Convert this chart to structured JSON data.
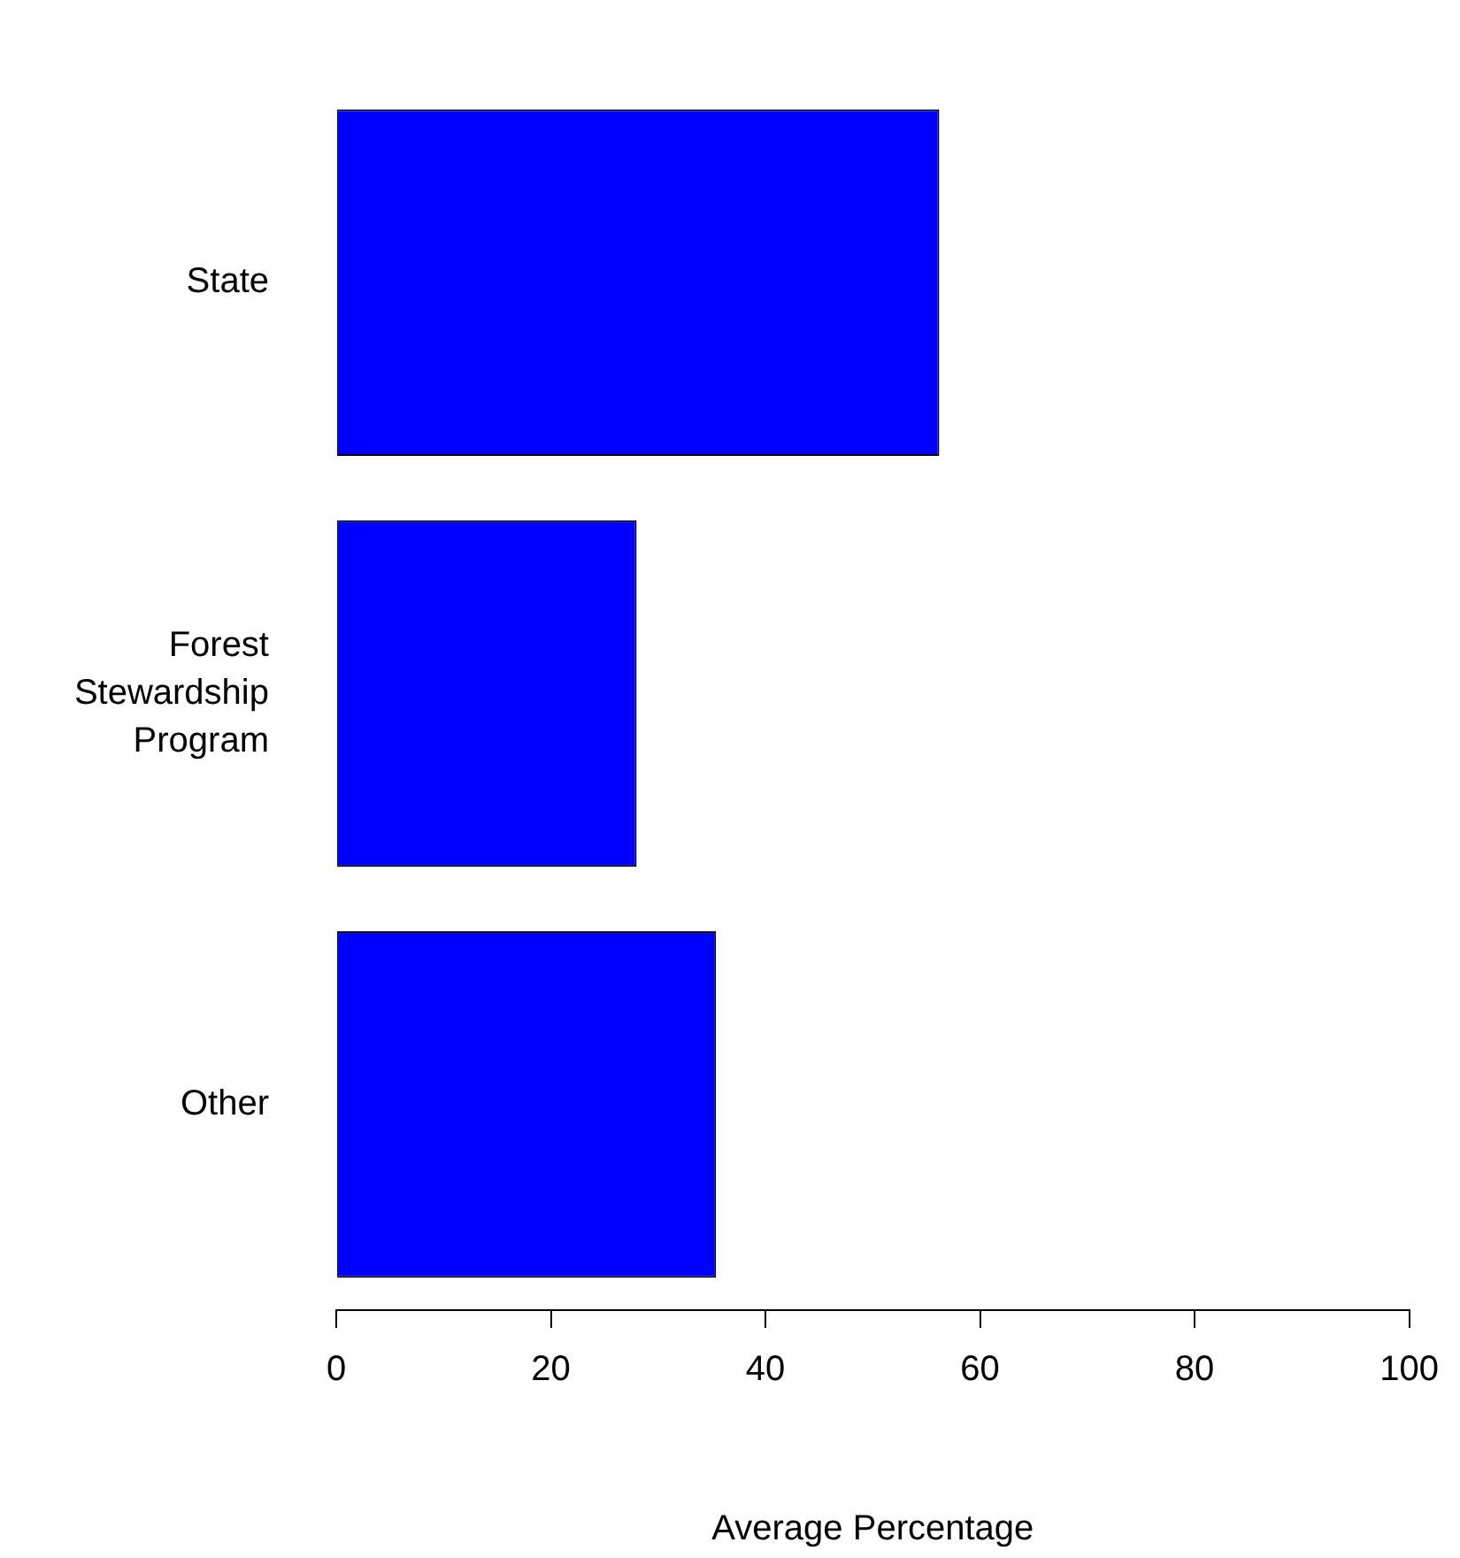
{
  "chart_data": {
    "type": "bar",
    "orientation": "horizontal",
    "categories": [
      "State",
      "Forest Stewardship Program",
      "Other"
    ],
    "values": [
      56.2,
      28,
      35.4
    ],
    "color": "#0000ff",
    "xlabel": "Average Percentage",
    "xlim": [
      0,
      100
    ],
    "xticks": [
      0,
      20,
      40,
      60,
      80,
      100
    ],
    "grid": false,
    "legend": false
  }
}
